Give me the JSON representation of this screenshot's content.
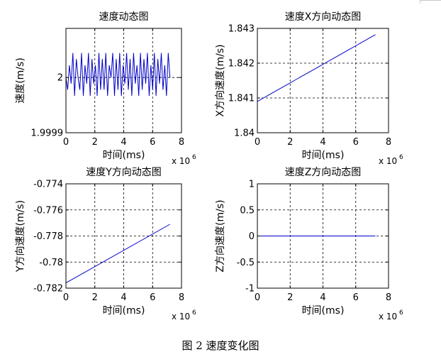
{
  "caption": "图 2 速度变化图",
  "chart_data": [
    {
      "type": "line",
      "title": "速度动态图",
      "xlabel": "时间(ms)",
      "ylabel": "速度(m/s)",
      "x_exponent": "x 10",
      "x_exponent_power": "6",
      "xlim": [
        0,
        8
      ],
      "ylim": [
        1.99991,
        2.00008
      ],
      "xticks": [
        0,
        2,
        4,
        6,
        8
      ],
      "xtick_labels": [
        "0",
        "2",
        "4",
        "6",
        "8"
      ],
      "yticks": [
        1.99991,
        2.0
      ],
      "ytick_labels": [
        "1.9999",
        "2"
      ],
      "grid": true,
      "series": [
        {
          "color": "#0000c8",
          "x": [
            0.0,
            0.12,
            0.24,
            0.36,
            0.48,
            0.6,
            0.72,
            0.84,
            0.96,
            1.08,
            1.2,
            1.32,
            1.44,
            1.56,
            1.68,
            1.8,
            1.92,
            2.04,
            2.16,
            2.28,
            2.4,
            2.52,
            2.64,
            2.76,
            2.88,
            3.0,
            3.12,
            3.24,
            3.36,
            3.48,
            3.6,
            3.72,
            3.84,
            3.96,
            4.08,
            4.2,
            4.32,
            4.44,
            4.56,
            4.68,
            4.8,
            4.92,
            5.04,
            5.16,
            5.28,
            5.4,
            5.52,
            5.64,
            5.76,
            5.88,
            6.0,
            6.12,
            6.24,
            6.36,
            6.48,
            6.6,
            6.72,
            6.84,
            6.96,
            7.08,
            7.2
          ],
          "values": [
            2.0,
            1.99998,
            2.00002,
            1.99999,
            2.00004,
            1.99997,
            2.00003,
            2.0,
            1.99998,
            2.00004,
            1.99997,
            2.00002,
            1.99999,
            2.00004,
            1.99997,
            2.00003,
            1.99999,
            2.00002,
            1.99997,
            2.00004,
            1.99998,
            2.00003,
            1.99998,
            2.00004,
            1.99997,
            2.00002,
            2.0,
            2.00004,
            1.99997,
            2.00003,
            1.99998,
            2.00004,
            1.99997,
            2.00002,
            1.99999,
            2.00004,
            1.99998,
            2.00003,
            1.99997,
            2.00004,
            1.99999,
            2.00002,
            1.99997,
            2.00004,
            1.99998,
            2.00003,
            1.99999,
            2.00004,
            1.99997,
            2.00002,
            1.99998,
            2.00004,
            1.99997,
            2.00003,
            1.99999,
            2.00004,
            1.99998,
            2.00002,
            1.99997,
            2.00004,
            2.0
          ]
        }
      ]
    },
    {
      "type": "line",
      "title": "速度X方向动态图",
      "xlabel": "时间(ms)",
      "ylabel": "X方向速度(m/s)",
      "x_exponent": "x 10",
      "x_exponent_power": "6",
      "xlim": [
        0,
        8
      ],
      "ylim": [
        1.84,
        1.843
      ],
      "xticks": [
        0,
        2,
        4,
        6,
        8
      ],
      "xtick_labels": [
        "0",
        "2",
        "4",
        "6",
        "8"
      ],
      "yticks": [
        1.84,
        1.841,
        1.842,
        1.843
      ],
      "ytick_labels": [
        "1.84",
        "1.841",
        "1.842",
        "1.843"
      ],
      "grid": true,
      "series": [
        {
          "color": "#0000c8",
          "x": [
            0.0,
            0.3,
            0.6,
            0.9,
            1.2,
            1.5,
            1.8,
            2.1,
            2.4,
            2.7,
            3.0,
            3.3,
            3.6,
            3.9,
            4.2,
            4.5,
            4.8,
            5.1,
            5.4,
            5.7,
            6.0,
            6.3,
            6.6,
            6.9,
            7.2
          ],
          "values": [
            1.8409,
            1.84098,
            1.84106,
            1.84114,
            1.84122,
            1.8413,
            1.84138,
            1.84146,
            1.84154,
            1.84162,
            1.8417,
            1.84178,
            1.84186,
            1.84194,
            1.84202,
            1.8421,
            1.84218,
            1.84226,
            1.84234,
            1.84242,
            1.8425,
            1.84258,
            1.84266,
            1.84274,
            1.84282
          ]
        }
      ]
    },
    {
      "type": "line",
      "title": "速度Y方向动态图",
      "xlabel": "时间(ms)",
      "ylabel": "Y方向速度(m/s)",
      "x_exponent": "x 10",
      "x_exponent_power": "6",
      "xlim": [
        0,
        8
      ],
      "ylim": [
        -0.782,
        -0.774
      ],
      "xticks": [
        0,
        2,
        4,
        6,
        8
      ],
      "xtick_labels": [
        "0",
        "2",
        "4",
        "6",
        "8"
      ],
      "yticks": [
        -0.782,
        -0.78,
        -0.778,
        -0.776,
        -0.774
      ],
      "ytick_labels": [
        "-0.782",
        "-0.78",
        "-0.778",
        "-0.776",
        "-0.774"
      ],
      "grid": true,
      "series": [
        {
          "color": "#0000c8",
          "x": [
            0.0,
            7.2
          ],
          "values": [
            -0.7816,
            -0.7771
          ]
        }
      ]
    },
    {
      "type": "line",
      "title": "速度Z方向动态图",
      "xlabel": "时间(ms)",
      "ylabel": "Z方向速度(m/s)",
      "x_exponent": "x 10",
      "x_exponent_power": "6",
      "xlim": [
        0,
        8
      ],
      "ylim": [
        -1,
        1
      ],
      "xticks": [
        0,
        2,
        4,
        6,
        8
      ],
      "xtick_labels": [
        "0",
        "2",
        "4",
        "6",
        "8"
      ],
      "yticks": [
        -1,
        -0.5,
        0,
        0.5,
        1
      ],
      "ytick_labels": [
        "-1",
        "-0.5",
        "0",
        "0.5",
        "1"
      ],
      "grid": true,
      "series": [
        {
          "color": "#0000c8",
          "x": [
            0.0,
            7.2
          ],
          "values": [
            0,
            0
          ]
        }
      ]
    }
  ]
}
